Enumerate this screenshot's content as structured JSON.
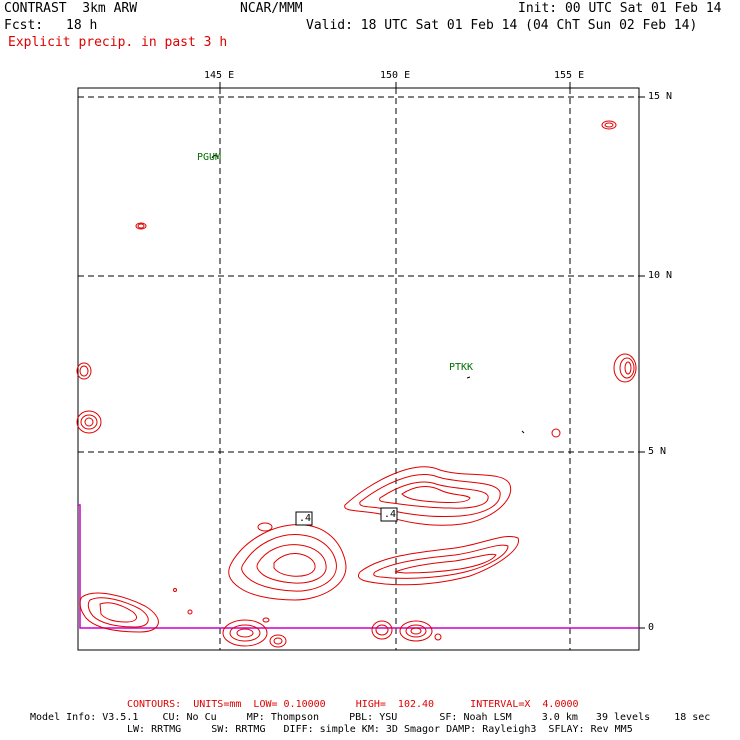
{
  "header": {
    "title": "CONTRAST  3km ARW",
    "center": "NCAR/MMM",
    "init": "Init: 00 UTC Sat 01 Feb 14",
    "fcst_label": "Fcst:",
    "fcst_value": "18 h",
    "valid": "Valid: 18 UTC Sat 01 Feb 14 (04 ChT Sun 02 Feb 14)",
    "field": "Explicit precip. in past 3 h"
  },
  "map": {
    "lon_labels": [
      "145 E",
      "150 E",
      "155 E"
    ],
    "lat_labels": [
      "15 N",
      "10 N",
      "5 N",
      "0"
    ],
    "stations": [
      "PGUM",
      "PTKK"
    ],
    "contour_labels": [
      ".4",
      ".4"
    ],
    "colors": {
      "contour": "#e00000",
      "station": "#007000",
      "boundary": "#cc00cc",
      "grid": "#000000"
    }
  },
  "footer": {
    "contours": "CONTOURS:  UNITS=mm  LOW= 0.10000     HIGH=  102.40      INTERVAL=X  4.0000",
    "model_line1": "Model Info: V3.5.1    CU: No Cu     MP: Thompson     PBL: YSU       SF: Noah LSM     3.0 km   39 levels    18 sec",
    "model_line2": "LW: RRTMG     SW: RRTMG   DIFF: simple KM: 3D Smagor DAMP: Rayleigh3  SFLAY: Rev MM5"
  }
}
